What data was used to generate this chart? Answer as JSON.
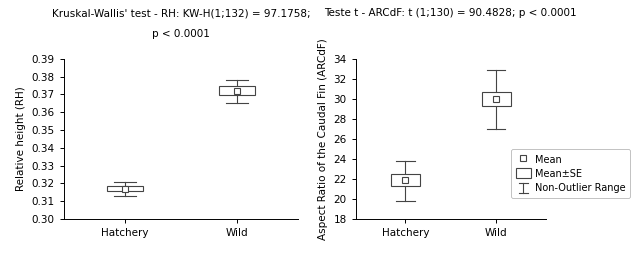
{
  "left_title_line1": "Kruskal-Wallis' test - RH: KW-H(1;132) = 97.1758;",
  "left_title_line2": "p < 0.0001",
  "right_title": "Teste t - ARCdF: t (1;130) = 90.4828; p < 0.0001",
  "left_ylabel": "Relative height (RH)",
  "right_ylabel": "Aspect Ratio of the Caudal Fin (ARCdF)",
  "categories": [
    "Hatchery",
    "Wild"
  ],
  "left_ylim": [
    0.3,
    0.39
  ],
  "right_ylim": [
    18,
    34
  ],
  "left_yticks": [
    0.3,
    0.31,
    0.32,
    0.33,
    0.34,
    0.35,
    0.36,
    0.37,
    0.38,
    0.39
  ],
  "right_yticks": [
    18,
    20,
    22,
    24,
    26,
    28,
    30,
    32,
    34
  ],
  "left_data": {
    "hatchery": {
      "mean": 0.317,
      "se_low": 0.3155,
      "se_high": 0.3185,
      "whisker_low": 0.313,
      "whisker_high": 0.321
    },
    "wild": {
      "mean": 0.372,
      "se_low": 0.3695,
      "se_high": 0.3745,
      "whisker_low": 0.365,
      "whisker_high": 0.378
    }
  },
  "right_data": {
    "hatchery": {
      "mean": 21.9,
      "se_low": 21.3,
      "se_high": 22.5,
      "whisker_low": 19.8,
      "whisker_high": 23.8
    },
    "wild": {
      "mean": 30.0,
      "se_low": 29.3,
      "se_high": 30.7,
      "whisker_low": 27.0,
      "whisker_high": 32.9
    }
  },
  "box_facecolor": "#ffffff",
  "box_edgecolor": "#444444",
  "mean_marker_size": 4,
  "mean_marker_color": "white",
  "mean_marker_edgecolor": "#444444",
  "whisker_color": "#444444",
  "legend_labels": [
    "Mean",
    "Mean±SE",
    "Non-Outlier Range"
  ],
  "title_fontsize": 7.5,
  "label_fontsize": 7.5,
  "tick_fontsize": 7.5,
  "legend_fontsize": 7.0,
  "background_color": "#ffffff"
}
